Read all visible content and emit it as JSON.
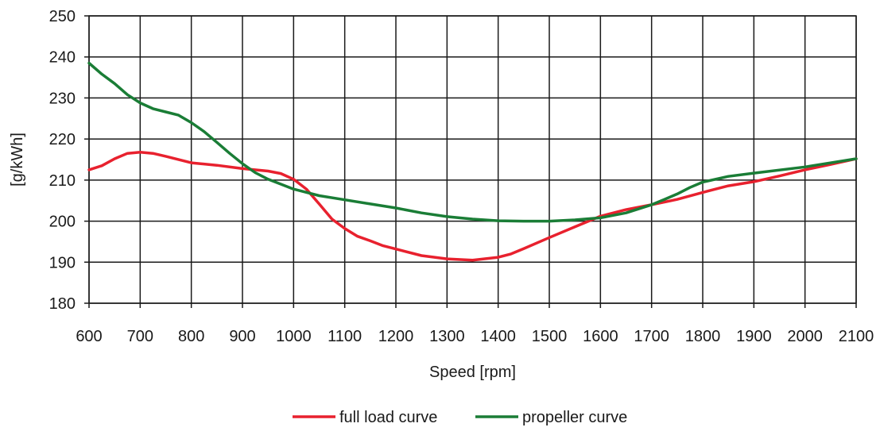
{
  "chart_data": {
    "type": "line",
    "title": "",
    "xlabel": "Speed [rpm]",
    "ylabel": "[g/kWh]",
    "xlim": [
      600,
      2100
    ],
    "ylim": [
      180,
      250
    ],
    "x_ticks": [
      600,
      700,
      800,
      900,
      1000,
      1100,
      1200,
      1300,
      1400,
      1500,
      1600,
      1700,
      1800,
      1900,
      2000,
      2100
    ],
    "y_ticks": [
      180,
      190,
      200,
      210,
      220,
      230,
      240,
      250
    ],
    "grid": true,
    "legend": "bottom",
    "series": [
      {
        "name": "full load curve",
        "color": "#e8212e",
        "x": [
          600,
          625,
          650,
          675,
          700,
          725,
          750,
          800,
          850,
          900,
          950,
          975,
          1000,
          1025,
          1050,
          1075,
          1100,
          1125,
          1150,
          1175,
          1200,
          1250,
          1300,
          1350,
          1400,
          1425,
          1450,
          1500,
          1550,
          1600,
          1650,
          1700,
          1750,
          1800,
          1850,
          1900,
          1950,
          2000,
          2050,
          2100
        ],
        "values": [
          212.5,
          213.5,
          215.2,
          216.5,
          216.8,
          216.5,
          215.8,
          214.2,
          213.6,
          212.8,
          212.2,
          211.6,
          210.2,
          207.8,
          204.2,
          200.5,
          198.2,
          196.3,
          195.2,
          194.0,
          193.2,
          191.6,
          190.8,
          190.5,
          191.2,
          192.0,
          193.3,
          196.0,
          198.6,
          201.2,
          202.8,
          204.0,
          205.3,
          207.0,
          208.6,
          209.6,
          211.0,
          212.5,
          213.8,
          215.2
        ]
      },
      {
        "name": "propeller curve",
        "color": "#1a7d36",
        "x": [
          600,
          625,
          650,
          675,
          700,
          725,
          750,
          775,
          800,
          825,
          850,
          875,
          900,
          925,
          950,
          975,
          1000,
          1050,
          1100,
          1150,
          1200,
          1250,
          1300,
          1350,
          1400,
          1450,
          1500,
          1550,
          1600,
          1650,
          1700,
          1725,
          1750,
          1775,
          1800,
          1850,
          1900,
          2000,
          2100
        ],
        "values": [
          238.5,
          235.8,
          233.5,
          230.8,
          228.8,
          227.4,
          226.6,
          225.8,
          224.0,
          221.8,
          219.2,
          216.5,
          214.0,
          211.8,
          210.2,
          209.0,
          207.8,
          206.2,
          205.2,
          204.2,
          203.2,
          202.0,
          201.1,
          200.5,
          200.1,
          200.0,
          200.0,
          200.3,
          200.8,
          202.0,
          204.0,
          205.3,
          206.6,
          208.2,
          209.5,
          210.9,
          211.7,
          213.2,
          215.2
        ]
      }
    ]
  }
}
